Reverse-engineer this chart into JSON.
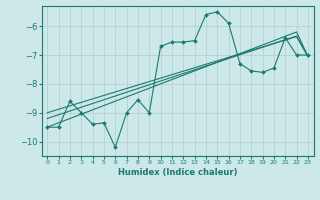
{
  "xlabel": "Humidex (Indice chaleur)",
  "bg_color": "#cce8e8",
  "grid_color": "#b8d4d4",
  "line_color": "#1a7a6e",
  "x_data": [
    0,
    1,
    2,
    3,
    4,
    5,
    6,
    7,
    8,
    9,
    10,
    11,
    12,
    13,
    14,
    15,
    16,
    17,
    18,
    19,
    20,
    21,
    22,
    23
  ],
  "y_main": [
    -9.5,
    -9.5,
    -8.6,
    -9.0,
    -9.4,
    -9.35,
    -10.2,
    -9.0,
    -8.55,
    -9.0,
    -6.7,
    -6.55,
    -6.55,
    -6.5,
    -5.6,
    -5.5,
    -5.9,
    -7.3,
    -7.55,
    -7.6,
    -7.45,
    -6.4,
    -7.0,
    -7.0
  ],
  "y_reg1": [
    -9.5,
    -9.35,
    -9.2,
    -9.05,
    -8.9,
    -8.75,
    -8.6,
    -8.45,
    -8.3,
    -8.15,
    -8.0,
    -7.85,
    -7.7,
    -7.55,
    -7.4,
    -7.25,
    -7.1,
    -6.95,
    -6.8,
    -6.65,
    -6.5,
    -6.35,
    -6.2,
    -7.05
  ],
  "y_reg2": [
    -9.2,
    -9.07,
    -8.94,
    -8.81,
    -8.68,
    -8.55,
    -8.42,
    -8.29,
    -8.16,
    -8.03,
    -7.9,
    -7.77,
    -7.64,
    -7.51,
    -7.38,
    -7.25,
    -7.12,
    -6.99,
    -6.86,
    -6.73,
    -6.6,
    -6.47,
    -6.34,
    -7.05
  ],
  "y_reg3": [
    -9.0,
    -8.88,
    -8.76,
    -8.64,
    -8.52,
    -8.4,
    -8.28,
    -8.16,
    -8.04,
    -7.92,
    -7.8,
    -7.68,
    -7.56,
    -7.44,
    -7.32,
    -7.2,
    -7.08,
    -6.96,
    -6.84,
    -6.72,
    -6.6,
    -6.48,
    -6.36,
    -7.05
  ],
  "ylim": [
    -10.5,
    -5.3
  ],
  "xlim": [
    -0.5,
    23.5
  ],
  "yticks": [
    -10,
    -9,
    -8,
    -7,
    -6
  ],
  "xticks": [
    0,
    1,
    2,
    3,
    4,
    5,
    6,
    7,
    8,
    9,
    10,
    11,
    12,
    13,
    14,
    15,
    16,
    17,
    18,
    19,
    20,
    21,
    22,
    23
  ]
}
